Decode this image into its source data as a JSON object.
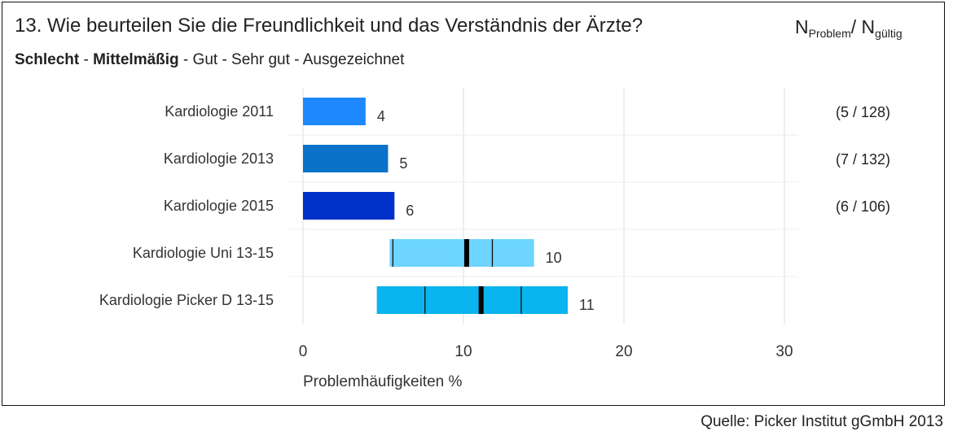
{
  "header": {
    "title": "13. Wie beurteilen Sie die Freundlichkeit und das Verständnis der Ärzte?",
    "n_main_1": "N",
    "n_sub_1": "Problem",
    "n_sep": "/ N",
    "n_sub_2": "gültig"
  },
  "scale": {
    "bold_1": "Schlecht",
    "sep_1": " - ",
    "bold_2": "Mittelmäßig",
    "rest": " - Gut - Sehr gut - Ausgezeichnet"
  },
  "source": "Quelle: Picker Institut gGmbH 2013",
  "chart_data": {
    "type": "bar",
    "orientation": "horizontal",
    "xlabel": "Problemhäufigkeiten %",
    "xlim": [
      0,
      30
    ],
    "xticks": [
      0,
      10,
      20,
      30
    ],
    "grid": true,
    "categories": [
      "Kardiologie 2011",
      "Kardiologie 2013",
      "Kardiologie 2015",
      "Kardiologie Uni 13-15",
      "Kardiologie Picker D 13-15"
    ],
    "bars": [
      {
        "label": "Kardiologie 2011",
        "value_label": "4",
        "start": 0,
        "end": 3.9,
        "color": "#1e88ff",
        "n_text": "(5 / 128)",
        "markers": [],
        "median": null
      },
      {
        "label": "Kardiologie 2013",
        "value_label": "5",
        "start": 0,
        "end": 5.3,
        "color": "#0a73c9",
        "n_text": "(7 / 132)",
        "markers": [],
        "median": null
      },
      {
        "label": "Kardiologie 2015",
        "value_label": "6",
        "start": 0,
        "end": 5.7,
        "color": "#0030c8",
        "n_text": "(6 / 106)",
        "markers": [],
        "median": null
      },
      {
        "label": "Kardiologie Uni 13-15",
        "value_label": "10",
        "start": 5.4,
        "end": 14.4,
        "color": "#6dd5ff",
        "n_text": "",
        "markers": [
          5.6,
          11.8
        ],
        "median": 10.2
      },
      {
        "label": "Kardiologie Picker D 13-15",
        "value_label": "11",
        "start": 4.6,
        "end": 16.5,
        "color": "#0ab4ee",
        "n_text": "",
        "markers": [
          7.6,
          13.6
        ],
        "median": 11.1
      }
    ]
  }
}
